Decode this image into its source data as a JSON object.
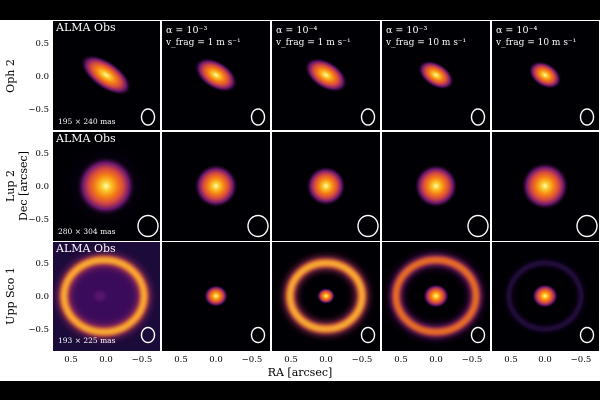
{
  "x_axis_label": "RA [arcsec]",
  "y_axis_label": "Dec [arcsec]",
  "x_ticks": [
    "0.5",
    "0.0",
    "−0.5"
  ],
  "y_ticks": [
    "0.5",
    "0.0",
    "−0.5"
  ],
  "column_headers": [
    {
      "line1": "ALMA Obs",
      "line2": ""
    },
    {
      "line1": "α = 10⁻³",
      "line2": "v_frag = 1 m s⁻¹"
    },
    {
      "line1": "α = 10⁻⁴",
      "line2": "v_frag = 1 m s⁻¹"
    },
    {
      "line1": "α = 10⁻³",
      "line2": "v_frag = 10 m s⁻¹"
    },
    {
      "line1": "α = 10⁻⁴",
      "line2": "v_frag = 10 m s⁻¹"
    }
  ],
  "rows": [
    {
      "name": "Oph 2",
      "obs_label": "ALMA Obs",
      "beam": "195 × 240 mas"
    },
    {
      "name": "Lup 2",
      "obs_label": "ALMA Obs",
      "beam": "280 × 304 mas"
    },
    {
      "name": "Upp Sco 1",
      "obs_label": "ALMA Obs",
      "beam": "193 × 225 mas"
    }
  ],
  "colormap": "inferno",
  "colors": {
    "background": "#000004",
    "beam": "#ffffff",
    "text": "#ffffff"
  }
}
